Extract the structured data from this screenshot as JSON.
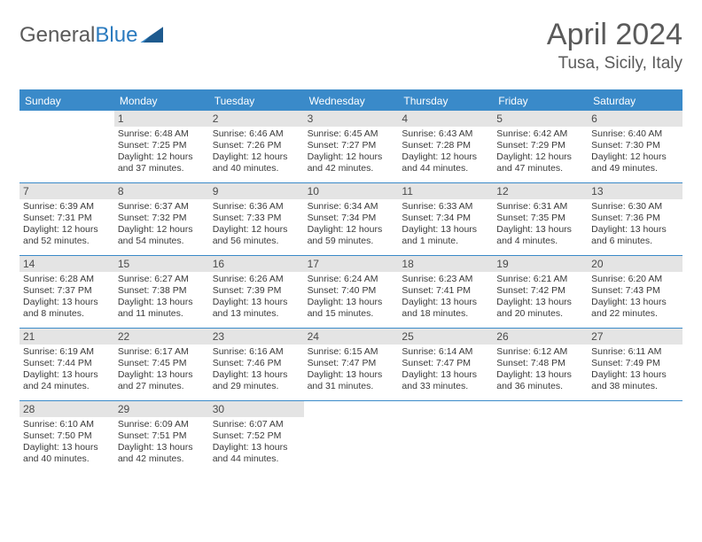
{
  "logo": {
    "text1": "General",
    "text2": "Blue"
  },
  "header": {
    "month": "April 2024",
    "location": "Tusa, Sicily, Italy"
  },
  "colors": {
    "accent": "#3a8ac9",
    "headerText": "#5a5a5a",
    "dayBg": "#e4e4e4"
  },
  "weekdays": [
    "Sunday",
    "Monday",
    "Tuesday",
    "Wednesday",
    "Thursday",
    "Friday",
    "Saturday"
  ],
  "weeks": [
    [
      null,
      {
        "n": "1",
        "sr": "Sunrise: 6:48 AM",
        "ss": "Sunset: 7:25 PM",
        "d1": "Daylight: 12 hours",
        "d2": "and 37 minutes."
      },
      {
        "n": "2",
        "sr": "Sunrise: 6:46 AM",
        "ss": "Sunset: 7:26 PM",
        "d1": "Daylight: 12 hours",
        "d2": "and 40 minutes."
      },
      {
        "n": "3",
        "sr": "Sunrise: 6:45 AM",
        "ss": "Sunset: 7:27 PM",
        "d1": "Daylight: 12 hours",
        "d2": "and 42 minutes."
      },
      {
        "n": "4",
        "sr": "Sunrise: 6:43 AM",
        "ss": "Sunset: 7:28 PM",
        "d1": "Daylight: 12 hours",
        "d2": "and 44 minutes."
      },
      {
        "n": "5",
        "sr": "Sunrise: 6:42 AM",
        "ss": "Sunset: 7:29 PM",
        "d1": "Daylight: 12 hours",
        "d2": "and 47 minutes."
      },
      {
        "n": "6",
        "sr": "Sunrise: 6:40 AM",
        "ss": "Sunset: 7:30 PM",
        "d1": "Daylight: 12 hours",
        "d2": "and 49 minutes."
      }
    ],
    [
      {
        "n": "7",
        "sr": "Sunrise: 6:39 AM",
        "ss": "Sunset: 7:31 PM",
        "d1": "Daylight: 12 hours",
        "d2": "and 52 minutes."
      },
      {
        "n": "8",
        "sr": "Sunrise: 6:37 AM",
        "ss": "Sunset: 7:32 PM",
        "d1": "Daylight: 12 hours",
        "d2": "and 54 minutes."
      },
      {
        "n": "9",
        "sr": "Sunrise: 6:36 AM",
        "ss": "Sunset: 7:33 PM",
        "d1": "Daylight: 12 hours",
        "d2": "and 56 minutes."
      },
      {
        "n": "10",
        "sr": "Sunrise: 6:34 AM",
        "ss": "Sunset: 7:34 PM",
        "d1": "Daylight: 12 hours",
        "d2": "and 59 minutes."
      },
      {
        "n": "11",
        "sr": "Sunrise: 6:33 AM",
        "ss": "Sunset: 7:34 PM",
        "d1": "Daylight: 13 hours",
        "d2": "and 1 minute."
      },
      {
        "n": "12",
        "sr": "Sunrise: 6:31 AM",
        "ss": "Sunset: 7:35 PM",
        "d1": "Daylight: 13 hours",
        "d2": "and 4 minutes."
      },
      {
        "n": "13",
        "sr": "Sunrise: 6:30 AM",
        "ss": "Sunset: 7:36 PM",
        "d1": "Daylight: 13 hours",
        "d2": "and 6 minutes."
      }
    ],
    [
      {
        "n": "14",
        "sr": "Sunrise: 6:28 AM",
        "ss": "Sunset: 7:37 PM",
        "d1": "Daylight: 13 hours",
        "d2": "and 8 minutes."
      },
      {
        "n": "15",
        "sr": "Sunrise: 6:27 AM",
        "ss": "Sunset: 7:38 PM",
        "d1": "Daylight: 13 hours",
        "d2": "and 11 minutes."
      },
      {
        "n": "16",
        "sr": "Sunrise: 6:26 AM",
        "ss": "Sunset: 7:39 PM",
        "d1": "Daylight: 13 hours",
        "d2": "and 13 minutes."
      },
      {
        "n": "17",
        "sr": "Sunrise: 6:24 AM",
        "ss": "Sunset: 7:40 PM",
        "d1": "Daylight: 13 hours",
        "d2": "and 15 minutes."
      },
      {
        "n": "18",
        "sr": "Sunrise: 6:23 AM",
        "ss": "Sunset: 7:41 PM",
        "d1": "Daylight: 13 hours",
        "d2": "and 18 minutes."
      },
      {
        "n": "19",
        "sr": "Sunrise: 6:21 AM",
        "ss": "Sunset: 7:42 PM",
        "d1": "Daylight: 13 hours",
        "d2": "and 20 minutes."
      },
      {
        "n": "20",
        "sr": "Sunrise: 6:20 AM",
        "ss": "Sunset: 7:43 PM",
        "d1": "Daylight: 13 hours",
        "d2": "and 22 minutes."
      }
    ],
    [
      {
        "n": "21",
        "sr": "Sunrise: 6:19 AM",
        "ss": "Sunset: 7:44 PM",
        "d1": "Daylight: 13 hours",
        "d2": "and 24 minutes."
      },
      {
        "n": "22",
        "sr": "Sunrise: 6:17 AM",
        "ss": "Sunset: 7:45 PM",
        "d1": "Daylight: 13 hours",
        "d2": "and 27 minutes."
      },
      {
        "n": "23",
        "sr": "Sunrise: 6:16 AM",
        "ss": "Sunset: 7:46 PM",
        "d1": "Daylight: 13 hours",
        "d2": "and 29 minutes."
      },
      {
        "n": "24",
        "sr": "Sunrise: 6:15 AM",
        "ss": "Sunset: 7:47 PM",
        "d1": "Daylight: 13 hours",
        "d2": "and 31 minutes."
      },
      {
        "n": "25",
        "sr": "Sunrise: 6:14 AM",
        "ss": "Sunset: 7:47 PM",
        "d1": "Daylight: 13 hours",
        "d2": "and 33 minutes."
      },
      {
        "n": "26",
        "sr": "Sunrise: 6:12 AM",
        "ss": "Sunset: 7:48 PM",
        "d1": "Daylight: 13 hours",
        "d2": "and 36 minutes."
      },
      {
        "n": "27",
        "sr": "Sunrise: 6:11 AM",
        "ss": "Sunset: 7:49 PM",
        "d1": "Daylight: 13 hours",
        "d2": "and 38 minutes."
      }
    ],
    [
      {
        "n": "28",
        "sr": "Sunrise: 6:10 AM",
        "ss": "Sunset: 7:50 PM",
        "d1": "Daylight: 13 hours",
        "d2": "and 40 minutes."
      },
      {
        "n": "29",
        "sr": "Sunrise: 6:09 AM",
        "ss": "Sunset: 7:51 PM",
        "d1": "Daylight: 13 hours",
        "d2": "and 42 minutes."
      },
      {
        "n": "30",
        "sr": "Sunrise: 6:07 AM",
        "ss": "Sunset: 7:52 PM",
        "d1": "Daylight: 13 hours",
        "d2": "and 44 minutes."
      },
      null,
      null,
      null,
      null
    ]
  ]
}
